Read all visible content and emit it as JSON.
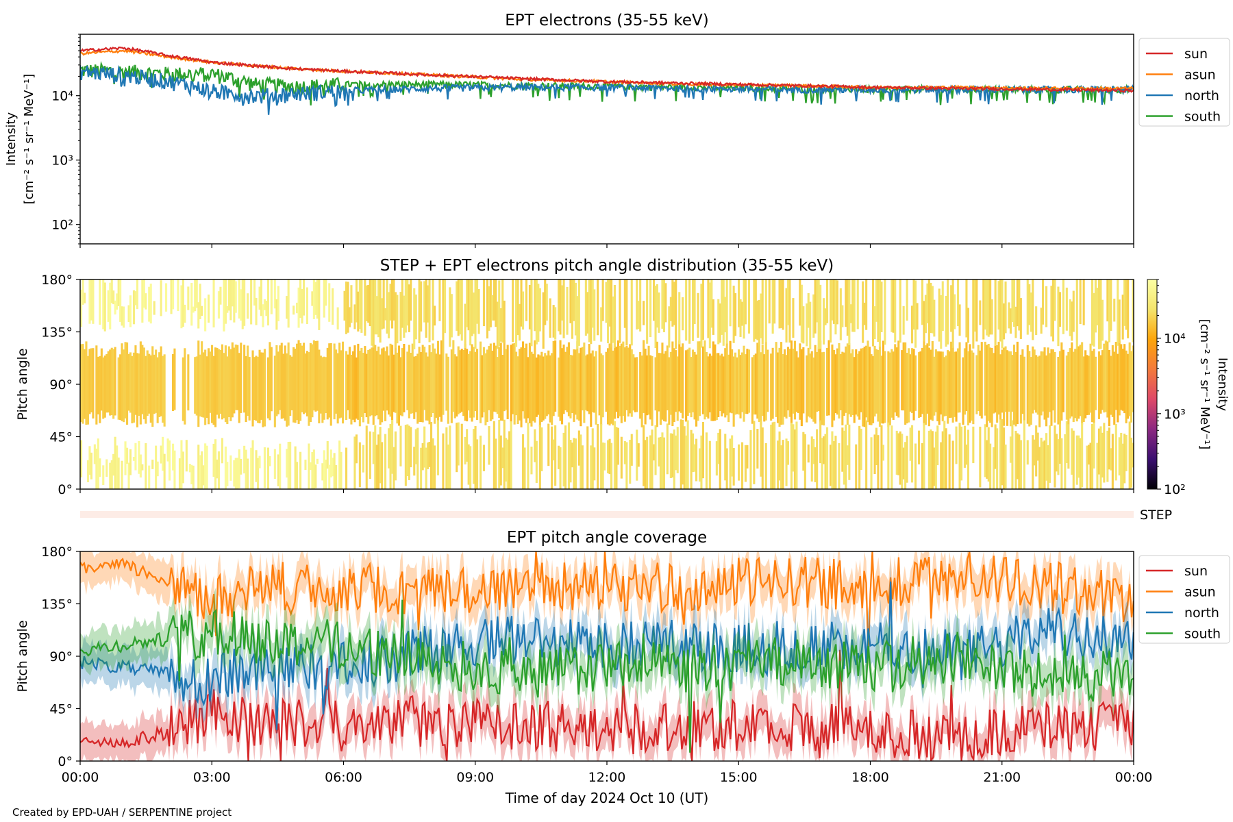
{
  "colors": {
    "sun": "#d62728",
    "asun": "#ff7f0e",
    "north": "#1f77b4",
    "south": "#2ca02c",
    "step_bar": "#fdece6",
    "colormap": [
      "#000004",
      "#3b0f70",
      "#8c2981",
      "#de4968",
      "#f37a3c",
      "#fca50a",
      "#f4e46c",
      "#fcffa4"
    ]
  },
  "legend_panel1": [
    {
      "key": "sun",
      "label": "sun"
    },
    {
      "key": "asun",
      "label": "asun"
    },
    {
      "key": "north",
      "label": "north"
    },
    {
      "key": "south",
      "label": "south"
    }
  ],
  "legend_panel3": [
    {
      "key": "sun",
      "label": "sun"
    },
    {
      "key": "asun",
      "label": "asun"
    },
    {
      "key": "north",
      "label": "north"
    },
    {
      "key": "south",
      "label": "south"
    }
  ],
  "step_label": "STEP",
  "credit": "Created by EPD-UAH / SERPENTINE project",
  "chart_data": [
    {
      "type": "line",
      "title": "EPT electrons (35-55 keV)",
      "ylabel": "Intensity",
      "ylabel_units": "[cm⁻² s⁻¹ sr⁻¹ MeV⁻¹]",
      "yscale": "log",
      "ylim": [
        50,
        90000
      ],
      "yticks": [
        {
          "value": 100,
          "label": "10²"
        },
        {
          "value": 1000,
          "label": "10³"
        },
        {
          "value": 10000,
          "label": "10⁴"
        }
      ],
      "xlim_hours": [
        0,
        24
      ],
      "legend_position": "outside-right-top",
      "series": [
        {
          "name": "sun",
          "key": "sun",
          "x_hours": [
            0,
            1,
            2,
            3,
            4,
            5,
            6,
            8,
            10,
            12,
            14,
            16,
            18,
            20,
            22,
            24
          ],
          "values": [
            50000,
            55000,
            42000,
            33000,
            29000,
            26000,
            24000,
            21000,
            18500,
            16500,
            15500,
            14500,
            13500,
            13000,
            12500,
            12000
          ]
        },
        {
          "name": "asun",
          "key": "asun",
          "x_hours": [
            0,
            1,
            2,
            3,
            4,
            5,
            6,
            8,
            10,
            12,
            14,
            16,
            18,
            20,
            22,
            24
          ],
          "values": [
            45000,
            50000,
            40000,
            33000,
            29000,
            26000,
            24000,
            21000,
            18000,
            16500,
            15000,
            14500,
            13500,
            13500,
            13000,
            13000
          ]
        },
        {
          "name": "north",
          "key": "north",
          "x_hours": [
            0,
            1,
            2,
            3,
            4,
            5,
            6,
            8,
            10,
            12,
            14,
            16,
            18,
            20,
            22,
            24
          ],
          "values": [
            24000,
            21000,
            17000,
            12000,
            10000,
            11000,
            12000,
            13000,
            13500,
            13500,
            13000,
            12500,
            12500,
            12500,
            12500,
            12500
          ]
        },
        {
          "name": "south",
          "key": "south",
          "x_hours": [
            0,
            1,
            2,
            3,
            4,
            5,
            6,
            8,
            10,
            12,
            14,
            16,
            18,
            20,
            22,
            24
          ],
          "values": [
            25000,
            24000,
            22000,
            22000,
            15000,
            14000,
            15000,
            15000,
            14500,
            14000,
            13500,
            13000,
            12500,
            12500,
            12500,
            12500
          ]
        }
      ]
    },
    {
      "type": "heatmap",
      "title": "STEP + EPT electrons pitch angle distribution (35-55 keV)",
      "ylabel": "Pitch angle",
      "ylim": [
        0,
        180
      ],
      "yticks": [
        "0°",
        "45°",
        "90°",
        "135°",
        "180°"
      ],
      "xlim_hours": [
        0,
        24
      ],
      "colorbar": {
        "label": "Intensity",
        "units": "[cm⁻² s⁻¹ sr⁻¹ MeV⁻¹]",
        "scale": "log",
        "range": [
          100,
          60000
        ],
        "ticks": [
          {
            "value": 100,
            "label": "10²"
          },
          {
            "value": 1000,
            "label": "10³"
          },
          {
            "value": 10000,
            "label": "10⁴"
          }
        ]
      },
      "description_levels": {
        "step_0_to_6h": 40000,
        "ept_center": 15000,
        "ept_edges": 22000
      }
    },
    {
      "type": "line",
      "title": "EPT pitch angle coverage",
      "ylabel": "Pitch angle",
      "xlabel": "Time of day 2024 Oct 10 (UT)",
      "ylim": [
        0,
        180
      ],
      "yticks": [
        "0°",
        "45°",
        "90°",
        "135°",
        "180°"
      ],
      "xlim_hours": [
        0,
        24
      ],
      "xticks": [
        "00:00",
        "03:00",
        "06:00",
        "09:00",
        "12:00",
        "15:00",
        "18:00",
        "21:00",
        "00:00"
      ],
      "legend_position": "outside-right-top",
      "series": [
        {
          "name": "sun",
          "key": "sun",
          "x_hours": [
            0,
            1,
            2,
            3,
            4,
            6,
            8,
            10,
            12,
            14,
            16,
            18,
            20,
            22,
            24
          ],
          "values": [
            20,
            15,
            25,
            40,
            35,
            30,
            35,
            30,
            30,
            30,
            30,
            25,
            20,
            30,
            30
          ]
        },
        {
          "name": "asun",
          "key": "asun",
          "x_hours": [
            0,
            1,
            2,
            3,
            4,
            6,
            8,
            10,
            12,
            14,
            16,
            18,
            20,
            22,
            24
          ],
          "values": [
            165,
            168,
            155,
            140,
            150,
            150,
            145,
            150,
            150,
            150,
            155,
            150,
            160,
            150,
            140
          ]
        },
        {
          "name": "north",
          "key": "north",
          "x_hours": [
            0,
            1,
            2,
            3,
            4,
            6,
            8,
            10,
            12,
            14,
            16,
            18,
            20,
            22,
            24
          ],
          "values": [
            85,
            80,
            75,
            70,
            80,
            80,
            95,
            105,
            100,
            100,
            95,
            100,
            90,
            110,
            105
          ]
        },
        {
          "name": "south",
          "key": "south",
          "x_hours": [
            0,
            1,
            2,
            3,
            4,
            6,
            8,
            10,
            12,
            14,
            16,
            18,
            20,
            22,
            24
          ],
          "values": [
            95,
            100,
            105,
            110,
            105,
            100,
            85,
            75,
            80,
            80,
            85,
            80,
            90,
            70,
            75
          ]
        }
      ]
    }
  ]
}
